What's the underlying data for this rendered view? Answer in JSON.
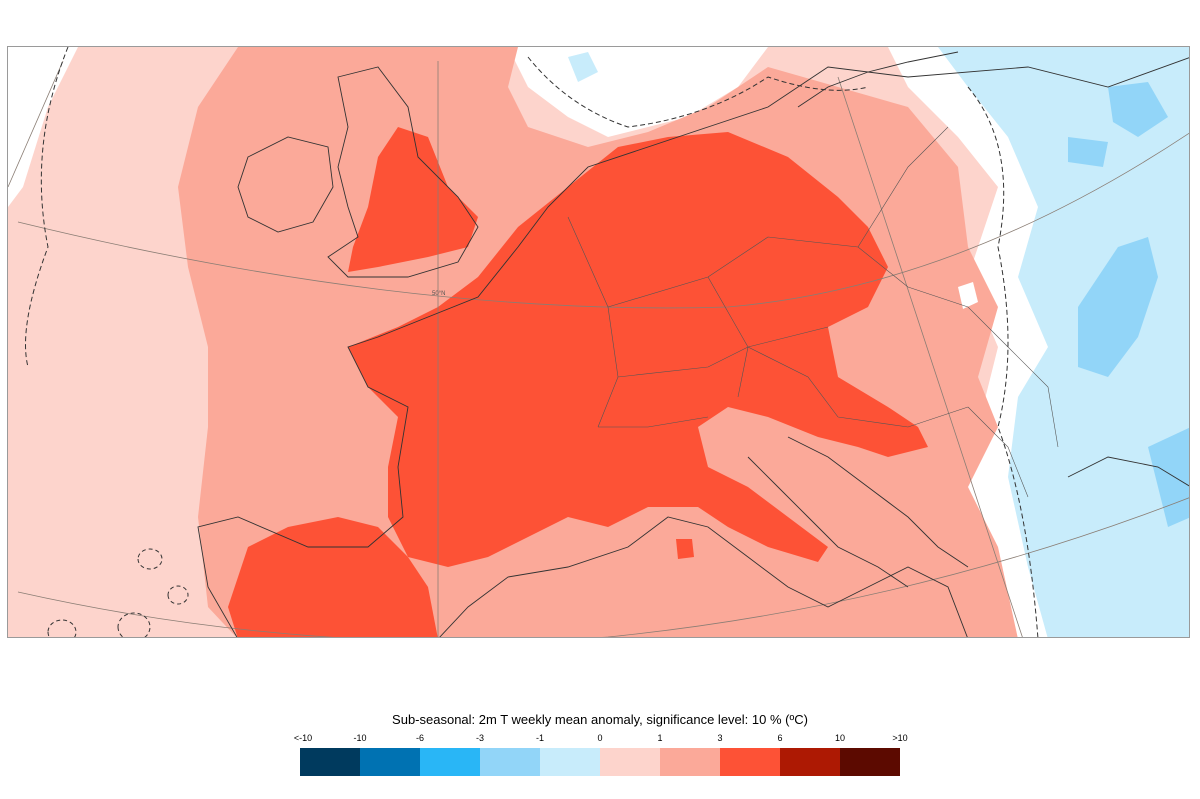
{
  "map": {
    "lat_label": "50°N"
  },
  "legend": {
    "title": "Sub-seasonal: 2m T weekly mean anomaly, significance level: 10 % (ºC)",
    "tick_labels": [
      "<-10",
      "-10",
      "-6",
      "-3",
      "-1",
      "0",
      "1",
      "3",
      "6",
      "10",
      ">10"
    ],
    "colors": [
      "#003a5e",
      "#0072b2",
      "#29b6f6",
      "#92d5f8",
      "#c8ecfb",
      "#fdd4cc",
      "#fba999",
      "#fd5236",
      "#ad1903",
      "#5c0a00"
    ]
  }
}
